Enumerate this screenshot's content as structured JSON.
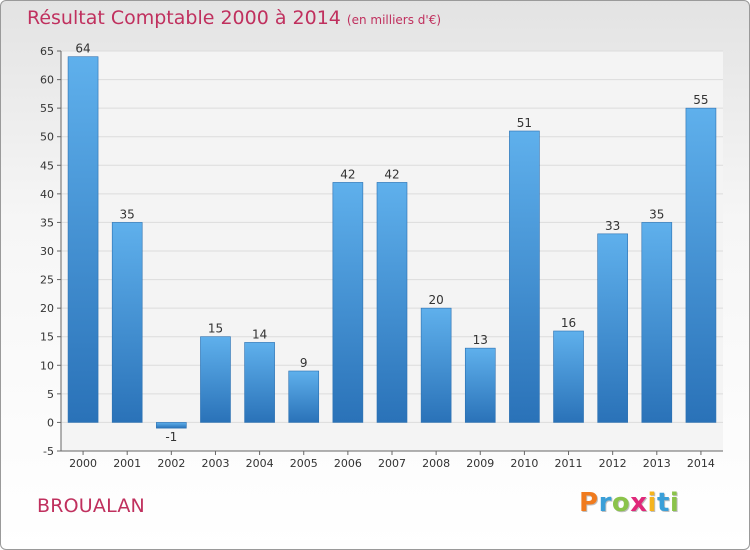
{
  "chart_data": {
    "type": "bar",
    "title": "Résultat Comptable 2000 à 2014",
    "subtitle": "(en milliers d'€)",
    "categories": [
      "2000",
      "2001",
      "2002",
      "2003",
      "2004",
      "2005",
      "2006",
      "2007",
      "2008",
      "2009",
      "2010",
      "2011",
      "2012",
      "2013",
      "2014"
    ],
    "values": [
      64,
      35,
      -1,
      15,
      14,
      9,
      42,
      42,
      20,
      13,
      51,
      16,
      33,
      35,
      55
    ],
    "value_labels": [
      "64",
      "35",
      "-1",
      "15",
      "14",
      "9",
      "42",
      "42",
      "20",
      "13",
      "51",
      "16",
      "33",
      "35",
      "55"
    ],
    "ylim": [
      -5,
      65
    ],
    "yticks": [
      -5,
      0,
      5,
      10,
      15,
      20,
      25,
      30,
      35,
      40,
      45,
      50,
      55,
      60,
      65
    ],
    "grid": true,
    "xlabel": "",
    "ylabel": ""
  },
  "footer": {
    "commune": "BROUALAN",
    "logo_letters": [
      "P",
      "r",
      "o",
      "x",
      "i",
      "t",
      "i"
    ],
    "logo_colors": [
      "#f07b1e",
      "#3a9fd8",
      "#8bc34a",
      "#e0287a",
      "#f5b41e",
      "#3a9fd8",
      "#8bc34a"
    ]
  },
  "colors": {
    "bar": "#3d8ed6",
    "bar_dark": "#2a72b8",
    "title": "#c0305e",
    "grid": "#dcdcdc"
  }
}
